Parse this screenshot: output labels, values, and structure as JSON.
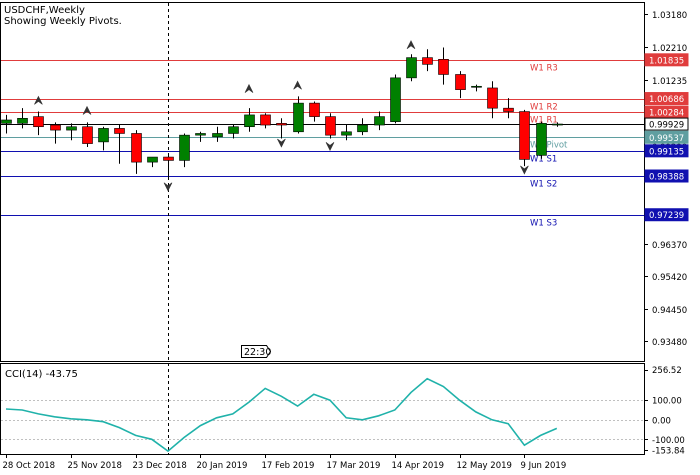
{
  "header": {
    "symbol_line": "USDCHF,Weekly",
    "indicator_line": "Showing Weekly Pivots."
  },
  "time_badge": "22:30",
  "colors": {
    "bull": "#008000",
    "bear": "#ff0000",
    "resistance": "#e03c3c",
    "support": "#1010b0",
    "pivot": "#5f9ea0",
    "current_price_line": "#000000",
    "cci_line": "#20b2aa",
    "grid": "#000000"
  },
  "chart_data": [
    {
      "type": "candlestick",
      "title": "USDCHF,Weekly",
      "subtitle": "Showing Weekly Pivots.",
      "ylim": [
        0.929,
        1.0355
      ],
      "y_ticks": [
        "1.03180",
        "1.02210",
        "1.01235",
        "1.00260",
        "0.99290",
        "0.98315",
        "0.97340",
        "0.96370",
        "0.95420",
        "0.94450",
        "0.93480"
      ],
      "x_ticks": [
        {
          "index": 0,
          "label": "28 Oct 2018"
        },
        {
          "index": 4,
          "label": "25 Nov 2018"
        },
        {
          "index": 8,
          "label": "23 Dec 2018"
        },
        {
          "index": 12,
          "label": "20 Jan 2019"
        },
        {
          "index": 16,
          "label": "17 Feb 2019"
        },
        {
          "index": 20,
          "label": "17 Mar 2019"
        },
        {
          "index": 24,
          "label": "14 Apr 2019"
        },
        {
          "index": 28,
          "label": "12 May 2019"
        },
        {
          "index": 32,
          "label": "9 Jun 2019"
        }
      ],
      "candles": [
        {
          "o": 0.9995,
          "h": 1.002,
          "l": 0.9965,
          "c": 1.0005
        },
        {
          "o": 0.9995,
          "h": 1.004,
          "l": 0.998,
          "c": 1.001
        },
        {
          "o": 1.0015,
          "h": 1.003,
          "l": 0.996,
          "c": 0.9985
        },
        {
          "o": 0.999,
          "h": 0.9998,
          "l": 0.9935,
          "c": 0.9975
        },
        {
          "o": 0.9975,
          "h": 0.9995,
          "l": 0.9945,
          "c": 0.9985
        },
        {
          "o": 0.9985,
          "h": 0.9998,
          "l": 0.9925,
          "c": 0.9935
        },
        {
          "o": 0.994,
          "h": 0.9985,
          "l": 0.9915,
          "c": 0.998
        },
        {
          "o": 0.998,
          "h": 0.999,
          "l": 0.9875,
          "c": 0.9965
        },
        {
          "o": 0.9965,
          "h": 0.9975,
          "l": 0.9845,
          "c": 0.988
        },
        {
          "o": 0.988,
          "h": 0.9895,
          "l": 0.9865,
          "c": 0.9895
        },
        {
          "o": 0.9895,
          "h": 0.9905,
          "l": 0.9835,
          "c": 0.9885
        },
        {
          "o": 0.9885,
          "h": 0.9965,
          "l": 0.9865,
          "c": 0.996
        },
        {
          "o": 0.996,
          "h": 0.997,
          "l": 0.994,
          "c": 0.9965
        },
        {
          "o": 0.9955,
          "h": 0.9985,
          "l": 0.994,
          "c": 0.9965
        },
        {
          "o": 0.9965,
          "h": 0.999,
          "l": 0.995,
          "c": 0.9985
        },
        {
          "o": 0.9985,
          "h": 1.004,
          "l": 0.997,
          "c": 1.002
        },
        {
          "o": 1.002,
          "h": 1.0025,
          "l": 0.998,
          "c": 0.999
        },
        {
          "o": 0.9995,
          "h": 1.001,
          "l": 0.995,
          "c": 0.999
        },
        {
          "o": 0.997,
          "h": 1.0075,
          "l": 0.9965,
          "c": 1.0055
        },
        {
          "o": 1.0055,
          "h": 1.006,
          "l": 1.0,
          "c": 1.0015
        },
        {
          "o": 1.0015,
          "h": 1.0025,
          "l": 0.995,
          "c": 0.996
        },
        {
          "o": 0.996,
          "h": 0.999,
          "l": 0.9945,
          "c": 0.997
        },
        {
          "o": 0.997,
          "h": 1.001,
          "l": 0.996,
          "c": 0.999
        },
        {
          "o": 0.999,
          "h": 1.003,
          "l": 0.9975,
          "c": 1.0015
        },
        {
          "o": 1.0,
          "h": 1.014,
          "l": 0.9995,
          "c": 1.013
        },
        {
          "o": 1.013,
          "h": 1.02,
          "l": 1.012,
          "c": 1.019
        },
        {
          "o": 1.019,
          "h": 1.0215,
          "l": 1.015,
          "c": 1.017
        },
        {
          "o": 1.0185,
          "h": 1.022,
          "l": 1.011,
          "c": 1.014
        },
        {
          "o": 1.014,
          "h": 1.015,
          "l": 1.007,
          "c": 1.0095
        },
        {
          "o": 1.0105,
          "h": 1.011,
          "l": 1.009,
          "c": 1.0105
        },
        {
          "o": 1.01,
          "h": 1.012,
          "l": 1.001,
          "c": 1.004
        },
        {
          "o": 1.004,
          "h": 1.007,
          "l": 1.001,
          "c": 1.003
        },
        {
          "o": 1.003,
          "h": 1.0035,
          "l": 0.9868,
          "c": 0.9888
        },
        {
          "o": 0.99,
          "h": 1.0,
          "l": 0.989,
          "c": 0.9995
        },
        {
          "o": 0.999,
          "h": 0.9998,
          "l": 0.9985,
          "c": 0.9993
        }
      ],
      "fractals": [
        {
          "index": 2,
          "dir": "up",
          "price": 1.0075
        },
        {
          "index": 5,
          "dir": "up",
          "price": 1.0045
        },
        {
          "index": 10,
          "dir": "down",
          "price": 0.9795
        },
        {
          "index": 15,
          "dir": "up",
          "price": 1.011
        },
        {
          "index": 17,
          "dir": "down",
          "price": 0.9925
        },
        {
          "index": 18,
          "dir": "up",
          "price": 1.012
        },
        {
          "index": 20,
          "dir": "down",
          "price": 0.9915
        },
        {
          "index": 25,
          "dir": "up",
          "price": 1.024
        },
        {
          "index": 32,
          "dir": "down",
          "price": 0.9845
        }
      ],
      "pivot_levels": [
        {
          "label": "W1 R3",
          "price": 1.01835,
          "kind": "resistance"
        },
        {
          "label": "W1 R2",
          "price": 1.00686,
          "kind": "resistance"
        },
        {
          "label": "W1 R1",
          "price": 1.00284,
          "kind": "resistance"
        },
        {
          "label": "W1 Pivot",
          "price": 0.99537,
          "kind": "pivot"
        },
        {
          "label": "W1 S1",
          "price": 0.99135,
          "kind": "support"
        },
        {
          "label": "W1 S2",
          "price": 0.98388,
          "kind": "support"
        },
        {
          "label": "W1 S3",
          "price": 0.97239,
          "kind": "support"
        }
      ],
      "price_labels": [
        {
          "text": "1.01835",
          "price": 1.01835,
          "kind": "resistance"
        },
        {
          "text": "1.00686",
          "price": 1.00686,
          "kind": "resistance"
        },
        {
          "text": "1.00284",
          "price": 1.00284,
          "kind": "resistance"
        },
        {
          "text": "0.99929",
          "price": 0.99929,
          "kind": "current"
        },
        {
          "text": "0.99537",
          "price": 0.99537,
          "kind": "pivot"
        },
        {
          "text": "0.99135",
          "price": 0.99135,
          "kind": "support"
        },
        {
          "text": "0.98388",
          "price": 0.98388,
          "kind": "support"
        },
        {
          "text": "0.97239",
          "price": 0.97239,
          "kind": "support"
        }
      ],
      "current_price": 0.99929,
      "crosshair_index": 10
    },
    {
      "type": "line",
      "title": "CCI(14) -43.75",
      "ylim": [
        -175,
        290
      ],
      "y_ticks": [
        "256.52",
        "100.00",
        "0.00",
        "-100.00",
        "-153.84"
      ],
      "levels": [
        100,
        0,
        -100
      ],
      "series": [
        {
          "name": "CCI(14)",
          "values": [
            55,
            50,
            30,
            15,
            5,
            0,
            -10,
            -40,
            -80,
            -100,
            -160,
            -90,
            -30,
            10,
            30,
            90,
            160,
            120,
            70,
            130,
            100,
            10,
            0,
            20,
            50,
            140,
            210,
            170,
            100,
            40,
            0,
            -20,
            -130,
            -80,
            -44
          ]
        }
      ]
    }
  ]
}
